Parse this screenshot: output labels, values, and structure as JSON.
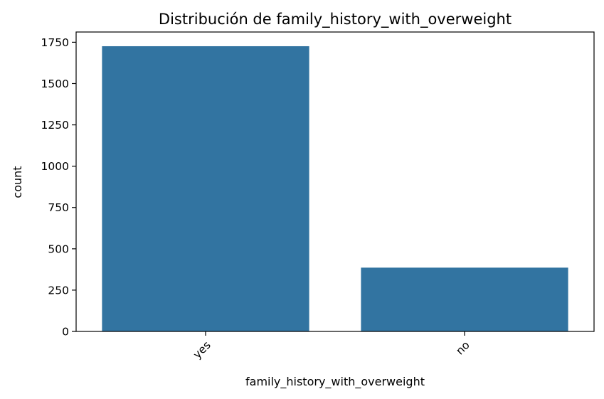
{
  "chart_data": {
    "type": "bar",
    "title": "Distribución de family_history_with_overweight",
    "xlabel": "family_history_with_overweight",
    "ylabel": "count",
    "categories": [
      "yes",
      "no"
    ],
    "values": [
      1726,
      386
    ],
    "ylim": [
      0,
      1812
    ],
    "yticks": [
      0,
      250,
      500,
      750,
      1000,
      1250,
      1500,
      1750
    ],
    "ytick_labels": [
      "0",
      "250",
      "500",
      "750",
      "1000",
      "1250",
      "1500",
      "1750"
    ],
    "xtick_rotation": 45,
    "grid": false,
    "legend": "none",
    "bar_color": "#3274a1"
  }
}
